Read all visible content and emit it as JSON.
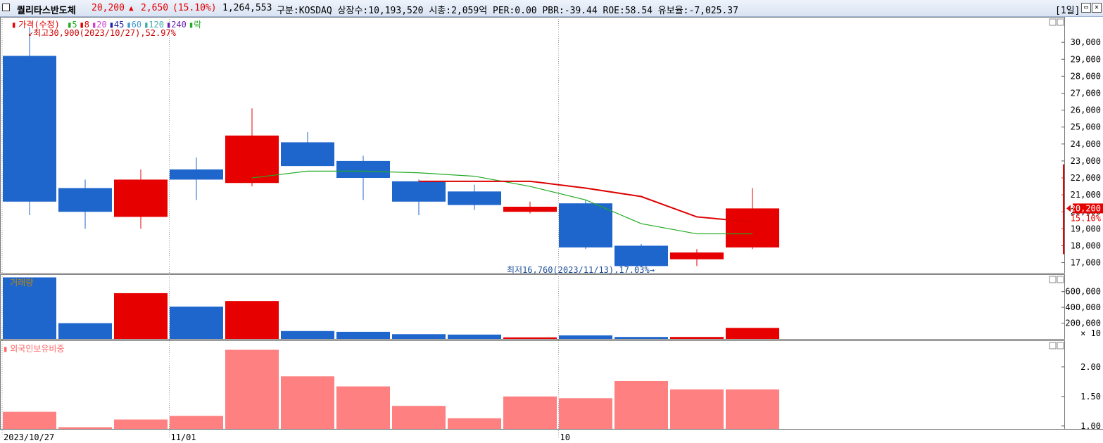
{
  "header": {
    "stock_name": "퀄리타스반도체",
    "price": "20,200",
    "change_arrow": "▲",
    "change": "2,650",
    "change_pct": "(15.10%)",
    "volume": "1,264,553",
    "info": "구분:KOSDAQ  상장수:10,193,520  시총:2,059억  PER:0.00  PBR:-39.44  ROE:58.54  유보율:-7,025.37",
    "period": "[1일]"
  },
  "legend": {
    "price_label": "가격(수정)",
    "ma": [
      {
        "label": "5",
        "color": "#22aa22"
      },
      {
        "label": "8",
        "color": "#dd0000"
      },
      {
        "label": "20",
        "color": "#cc44cc"
      },
      {
        "label": "45",
        "color": "#2222aa"
      },
      {
        "label": "60",
        "color": "#4499cc"
      },
      {
        "label": "120",
        "color": "#44aaaa"
      },
      {
        "label": "240",
        "color": "#6622aa"
      },
      {
        "label": "락",
        "color": "#22aa22"
      }
    ],
    "volume_label": "거래량",
    "foreign_label": "외국인보유비중"
  },
  "annotations": {
    "high": "최고30,900(2023/10/27),52.97%",
    "low": "최저16,760(2023/11/13),17.03%"
  },
  "current": {
    "price": "20,200",
    "pct": "15.10%"
  },
  "colors": {
    "up": "#e60000",
    "down": "#1f66cc",
    "ma5": "#22aa22",
    "ma8": "#dd0000",
    "foreign": "#ff8080"
  },
  "chart_data": {
    "type": "candlestick",
    "x_ticks": [
      "2023/10/27",
      "11/01",
      "10"
    ],
    "price_axis": {
      "ticks": [
        "17,000",
        "18,000",
        "19,000",
        "20,000",
        "21,000",
        "22,000",
        "23,000",
        "24,000",
        "25,000",
        "26,000",
        "27,000",
        "28,000",
        "29,000",
        "30,000"
      ],
      "ylim": [
        16400,
        31500
      ]
    },
    "candles": [
      {
        "o": 29200,
        "h": 30900,
        "l": 19800,
        "c": 20600
      },
      {
        "o": 21400,
        "h": 21900,
        "l": 19000,
        "c": 20000
      },
      {
        "o": 19700,
        "h": 22500,
        "l": 19000,
        "c": 21900
      },
      {
        "o": 22500,
        "h": 23200,
        "l": 20700,
        "c": 21900
      },
      {
        "o": 21700,
        "h": 26100,
        "l": 21500,
        "c": 24500
      },
      {
        "o": 24100,
        "h": 24700,
        "l": 22700,
        "c": 22700
      },
      {
        "o": 23000,
        "h": 23300,
        "l": 20700,
        "c": 22000
      },
      {
        "o": 21800,
        "h": 21900,
        "l": 19800,
        "c": 20600
      },
      {
        "o": 21200,
        "h": 21600,
        "l": 20100,
        "c": 20400
      },
      {
        "o": 20000,
        "h": 20600,
        "l": 19900,
        "c": 20300
      },
      {
        "o": 20500,
        "h": 20700,
        "l": 17800,
        "c": 17900
      },
      {
        "o": 18000,
        "h": 18100,
        "l": 16760,
        "c": 16800
      },
      {
        "o": 17200,
        "h": 17800,
        "l": 16800,
        "c": 17600
      },
      {
        "o": 17900,
        "h": 21400,
        "l": 17800,
        "c": 20200
      }
    ],
    "ma5": [
      null,
      null,
      null,
      null,
      22000,
      22400,
      22400,
      22300,
      22100,
      21500,
      20700,
      19300,
      18700,
      18700
    ],
    "ma8": [
      null,
      null,
      null,
      null,
      null,
      null,
      null,
      21800,
      21800,
      21800,
      21400,
      20900,
      19700,
      19400
    ],
    "volume_axis": {
      "ticks": [
        "200,000",
        "400,000",
        "600,000"
      ],
      "unit": "× 10",
      "ylim": [
        0,
        820000
      ]
    },
    "volume": [
      780000,
      200000,
      580000,
      410000,
      480000,
      100000,
      90000,
      60000,
      55000,
      20000,
      45000,
      25000,
      25000,
      140000
    ],
    "foreign_axis": {
      "ticks": [
        "1.00",
        "1.50",
        "2.00"
      ],
      "ylim": [
        0.95,
        2.45
      ]
    },
    "foreign_ratio": [
      1.24,
      0.98,
      1.11,
      1.17,
      2.29,
      1.84,
      1.67,
      1.34,
      1.13,
      1.5,
      1.47,
      1.76,
      1.62,
      1.62
    ]
  }
}
